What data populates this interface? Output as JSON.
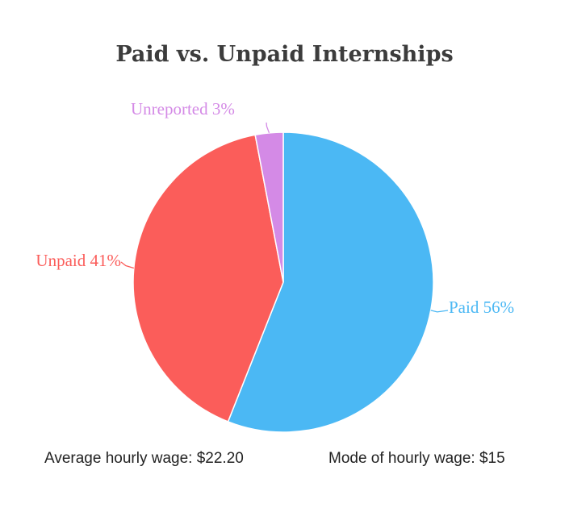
{
  "chart_data": {
    "type": "pie",
    "title": "Paid vs. Unpaid Internships",
    "slices": [
      {
        "name": "Paid",
        "value": 56,
        "label": "Paid 56%",
        "color": "#4bb8f4"
      },
      {
        "name": "Unpaid",
        "value": 41,
        "label": "Unpaid 41%",
        "color": "#fb5d5a"
      },
      {
        "name": "Unreported",
        "value": 3,
        "label": "Unreported 3%",
        "color": "#d48ae6"
      }
    ],
    "start_angle_deg": 0,
    "direction": "clockwise",
    "notes": [
      {
        "text": "Average hourly wage:  $22.20"
      },
      {
        "text": "Mode of hourly wage: $15"
      }
    ]
  }
}
